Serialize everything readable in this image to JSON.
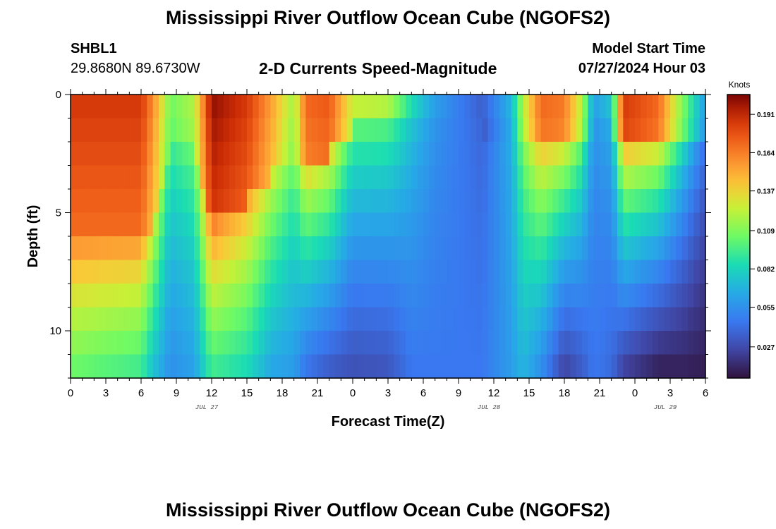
{
  "page": {
    "title": "Mississippi River Outflow Ocean Cube (NGOFS2)",
    "subtitle": "2-D Currents Speed-Magnitude",
    "station_id": "SHBL1",
    "station_coords": "29.8680N  89.6730W",
    "model_start_label": "Model Start Time",
    "model_start_value": "07/27/2024 Hour 03",
    "footer_title": "Mississippi River Outflow Ocean Cube (NGOFS2)"
  },
  "chart_data": {
    "type": "heatmap",
    "title": "2-D Currents Speed-Magnitude",
    "xlabel": "Forecast Time(Z)",
    "ylabel": "Depth (ft)",
    "x_hours": [
      0,
      54
    ],
    "y_depth_ft": [
      0,
      12
    ],
    "x_ticks": [
      {
        "hour": 0,
        "label": "0"
      },
      {
        "hour": 3,
        "label": "3"
      },
      {
        "hour": 6,
        "label": "6"
      },
      {
        "hour": 9,
        "label": "9"
      },
      {
        "hour": 12,
        "label": "12"
      },
      {
        "hour": 15,
        "label": "15"
      },
      {
        "hour": 18,
        "label": "18"
      },
      {
        "hour": 21,
        "label": "21"
      },
      {
        "hour": 24,
        "label": "0"
      },
      {
        "hour": 27,
        "label": "3"
      },
      {
        "hour": 30,
        "label": "6"
      },
      {
        "hour": 33,
        "label": "9"
      },
      {
        "hour": 36,
        "label": "12"
      },
      {
        "hour": 39,
        "label": "15"
      },
      {
        "hour": 42,
        "label": "18"
      },
      {
        "hour": 45,
        "label": "21"
      },
      {
        "hour": 48,
        "label": "0"
      },
      {
        "hour": 51,
        "label": "3"
      },
      {
        "hour": 54,
        "label": "6"
      }
    ],
    "date_labels": [
      {
        "hour": 12,
        "label": "JUL 27"
      },
      {
        "hour": 36,
        "label": "JUL 28"
      },
      {
        "hour": 51,
        "label": "JUL 29"
      }
    ],
    "y_ticks": [
      {
        "depth": 0,
        "label": "0"
      },
      {
        "depth": 5,
        "label": "5"
      },
      {
        "depth": 10,
        "label": "10"
      }
    ],
    "colorbar": {
      "units": "Knots",
      "min": 0.005,
      "max": 0.205,
      "tick_values": [
        0.191,
        0.164,
        0.137,
        0.109,
        0.082,
        0.055,
        0.027
      ],
      "tick_labels": [
        "0.191",
        "0.164",
        "0.137",
        "0.109",
        "0.082",
        "0.055",
        "0.027"
      ]
    },
    "columns_per_hour": 2,
    "depth_rows": 12,
    "profile_keys_note": "hour: [surface speed, deep speed, surface-layer thickness in rows] in knots",
    "profile_keys": [
      [
        0,
        0.185,
        0.105,
        6
      ],
      [
        6,
        0.185,
        0.095,
        6
      ],
      [
        7,
        0.16,
        0.075,
        5
      ],
      [
        8.5,
        0.105,
        0.055,
        2
      ],
      [
        10.5,
        0.12,
        0.062,
        2
      ],
      [
        12,
        0.2,
        0.095,
        5
      ],
      [
        15,
        0.185,
        0.085,
        4
      ],
      [
        17,
        0.155,
        0.065,
        3
      ],
      [
        19,
        0.115,
        0.06,
        3
      ],
      [
        20,
        0.17,
        0.045,
        3
      ],
      [
        22,
        0.175,
        0.035,
        2
      ],
      [
        24,
        0.125,
        0.03,
        1
      ],
      [
        27,
        0.12,
        0.032,
        1
      ],
      [
        29,
        0.085,
        0.045,
        1
      ],
      [
        31,
        0.06,
        0.045,
        1
      ],
      [
        35,
        0.035,
        0.045,
        1
      ],
      [
        37.5,
        0.07,
        0.06,
        2
      ],
      [
        38.5,
        0.12,
        0.07,
        2
      ],
      [
        40,
        0.17,
        0.055,
        2
      ],
      [
        42,
        0.165,
        0.025,
        2
      ],
      [
        43.5,
        0.12,
        0.035,
        2
      ],
      [
        44.5,
        0.06,
        0.045,
        1
      ],
      [
        46,
        0.075,
        0.04,
        1
      ],
      [
        47,
        0.185,
        0.025,
        2
      ],
      [
        50,
        0.17,
        0.012,
        2
      ],
      [
        52,
        0.11,
        0.012,
        2
      ],
      [
        54,
        0.06,
        0.01,
        1
      ]
    ]
  }
}
